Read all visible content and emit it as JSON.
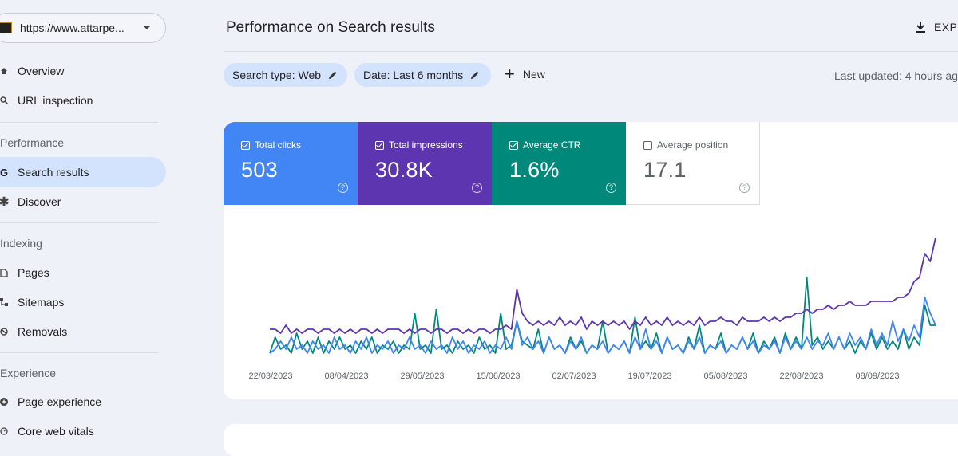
{
  "property": {
    "url": "https://www.attarpe..."
  },
  "sidebar": {
    "items_top": [
      {
        "label": "Overview",
        "icon": "home-icon"
      },
      {
        "label": "URL inspection",
        "icon": "search-icon"
      }
    ],
    "section_performance": "Performance",
    "performance_items": [
      {
        "label": "Search results",
        "icon": "google-icon",
        "active": true
      },
      {
        "label": "Discover",
        "icon": "asterisk-icon"
      }
    ],
    "section_indexing": "Indexing",
    "indexing_items": [
      {
        "label": "Pages",
        "icon": "page-icon"
      },
      {
        "label": "Sitemaps",
        "icon": "sitemap-icon"
      },
      {
        "label": "Removals",
        "icon": "removal-icon"
      }
    ],
    "section_experience": "Experience",
    "experience_items": [
      {
        "label": "Page experience",
        "icon": "plus-circle-icon"
      },
      {
        "label": "Core web vitals",
        "icon": "gauge-icon"
      }
    ]
  },
  "header": {
    "title": "Performance on Search results",
    "export_label": "EXPO"
  },
  "filters": {
    "search_type": "Search type: Web",
    "date": "Date: Last 6 months",
    "new_label": "New",
    "last_updated": "Last updated: 4 hours ag"
  },
  "metrics": [
    {
      "label": "Total clicks",
      "value": "503",
      "checked": true,
      "color": "#4285f4"
    },
    {
      "label": "Total impressions",
      "value": "30.8K",
      "checked": true,
      "color": "#5e35b1"
    },
    {
      "label": "Average CTR",
      "value": "1.6%",
      "checked": true,
      "color": "#00897b"
    },
    {
      "label": "Average position",
      "value": "17.1",
      "checked": false,
      "color": "#ffffff"
    }
  ],
  "chart_data": {
    "type": "line",
    "x_ticks": [
      "22/03/2023",
      "08/04/2023",
      "29/05/2023",
      "15/06/2023",
      "02/07/2023",
      "19/07/2023",
      "05/08/2023",
      "22/08/2023",
      "08/09/2023"
    ],
    "series": [
      {
        "name": "Total clicks",
        "color": "#4285f4",
        "values": [
          2,
          3,
          5,
          3,
          6,
          3,
          4,
          2,
          5,
          3,
          4,
          2,
          6,
          3,
          4,
          2,
          5,
          3,
          6,
          2,
          4,
          3,
          5,
          2,
          4,
          3,
          6,
          3,
          4,
          2,
          5,
          3,
          4,
          2,
          6,
          3,
          5,
          2,
          4,
          3,
          5,
          2,
          4,
          3,
          6,
          3,
          10,
          4,
          6,
          3,
          5,
          2,
          6,
          3,
          4,
          2,
          5,
          3,
          6,
          2,
          4,
          3,
          5,
          2,
          4,
          3,
          5,
          2,
          6,
          3,
          8,
          3,
          5,
          2,
          6,
          3,
          4,
          2,
          5,
          3,
          6,
          2,
          4,
          3,
          5,
          2,
          4,
          3,
          6,
          3,
          5,
          2,
          4,
          3,
          5,
          2,
          6,
          3,
          5,
          3,
          6,
          3,
          5,
          4,
          7,
          3,
          6,
          3,
          7,
          4,
          6,
          3,
          8,
          4,
          7,
          4,
          10,
          5,
          8,
          5,
          9,
          6,
          16,
          12,
          9
        ]
      },
      {
        "name": "Total impressions",
        "color": "#5e35b1",
        "values": [
          8,
          8,
          7,
          9,
          7,
          8,
          7,
          8,
          8,
          7,
          8,
          8,
          7,
          8,
          7,
          8,
          7,
          8,
          8,
          7,
          8,
          7,
          8,
          8,
          8,
          7,
          8,
          7,
          8,
          8,
          7,
          8,
          8,
          7,
          8,
          8,
          7,
          8,
          7,
          8,
          8,
          7,
          8,
          8,
          9,
          8,
          18,
          12,
          10,
          9,
          10,
          9,
          10,
          9,
          11,
          9,
          10,
          9,
          11,
          8,
          10,
          9,
          10,
          9,
          10,
          9,
          10,
          8,
          10,
          9,
          11,
          9,
          10,
          9,
          11,
          9,
          10,
          9,
          10,
          9,
          11,
          9,
          10,
          10,
          11,
          10,
          10,
          9,
          11,
          10,
          10,
          10,
          11,
          10,
          11,
          10,
          11,
          11,
          12,
          12,
          13,
          12,
          13,
          13,
          14,
          13,
          14,
          14,
          15,
          14,
          14,
          14,
          15,
          15,
          15,
          15,
          15,
          16,
          16,
          17,
          20,
          21,
          27,
          25,
          31
        ]
      },
      {
        "name": "Average CTR",
        "color": "#00897b",
        "values": [
          2,
          6,
          3,
          4,
          2,
          7,
          3,
          5,
          2,
          6,
          2,
          5,
          3,
          6,
          3,
          4,
          2,
          5,
          3,
          6,
          2,
          4,
          3,
          5,
          2,
          4,
          3,
          12,
          3,
          4,
          2,
          13,
          3,
          4,
          2,
          5,
          3,
          4,
          2,
          6,
          3,
          4,
          2,
          12,
          3,
          4,
          10,
          5,
          4,
          3,
          8,
          2,
          6,
          3,
          4,
          2,
          6,
          3,
          5,
          2,
          4,
          3,
          10,
          2,
          4,
          3,
          5,
          2,
          11,
          3,
          5,
          3,
          7,
          2,
          6,
          3,
          4,
          2,
          6,
          3,
          9,
          2,
          4,
          3,
          7,
          2,
          4,
          3,
          6,
          3,
          7,
          2,
          5,
          3,
          6,
          2,
          7,
          3,
          6,
          3,
          21,
          4,
          6,
          3,
          5,
          3,
          6,
          3,
          5,
          2,
          5,
          3,
          7,
          3,
          6,
          3,
          5,
          3,
          8,
          3,
          6,
          4,
          14,
          9,
          9
        ]
      }
    ],
    "ylim": [
      0,
      32
    ],
    "grid": false,
    "legend": "none"
  }
}
